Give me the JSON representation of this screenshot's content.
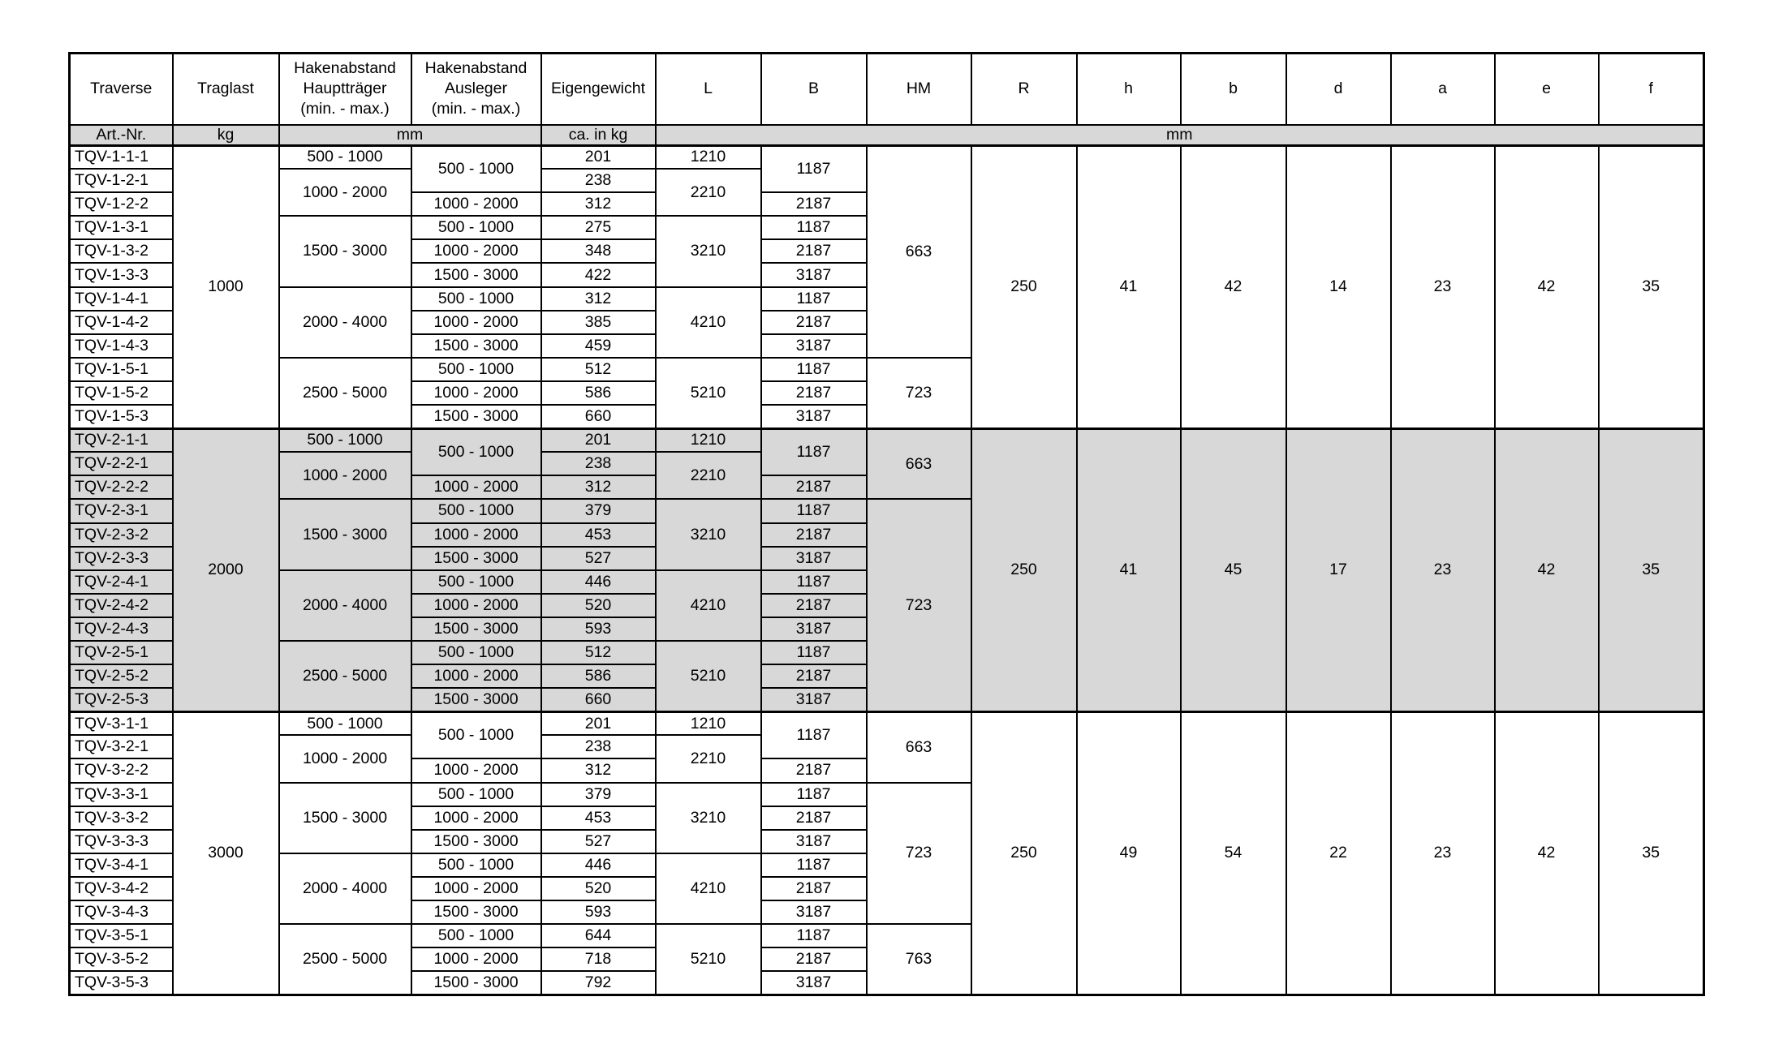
{
  "table": {
    "shade_color": "#d8d8d8",
    "border_color": "#000000",
    "column_keys": [
      "art-nr",
      "traglast",
      "hakenabstand-haupttraeger",
      "hakenabstand-ausleger",
      "eigengewicht",
      "l",
      "b-upper",
      "hm",
      "r",
      "h",
      "b-lower",
      "d",
      "a",
      "e",
      "f"
    ],
    "columns": [
      "Traverse",
      "Traglast",
      "Hakenabstand\nHauptträger\n(min. - max.)",
      "Hakenabstand\nAusleger\n(min. - max.)",
      "Eigengewicht",
      "L",
      "B",
      "HM",
      "R",
      "h",
      "b",
      "d",
      "a",
      "e",
      "f"
    ],
    "units_row": [
      {
        "t": "Art.-Nr.",
        "cs": 1,
        "name": "unit-art-nr"
      },
      {
        "t": "kg",
        "cs": 1,
        "name": "unit-kg"
      },
      {
        "t": "mm",
        "cs": 2,
        "name": "unit-mm-hakenabstand"
      },
      {
        "t": "ca. in kg",
        "cs": 1,
        "name": "unit-ca-in-kg"
      },
      {
        "t": "mm",
        "cs": 10,
        "name": "unit-mm-abmessungen"
      }
    ],
    "rows": [
      {
        "shade": false,
        "block_start": true,
        "cells": [
          {
            "c": 0,
            "t": "TQV-1-1-1"
          },
          {
            "c": 1,
            "t": "1000",
            "rs": 12
          },
          {
            "c": 2,
            "t": "500 - 1000"
          },
          {
            "c": 3,
            "t": "500 - 1000",
            "rs": 2
          },
          {
            "c": 4,
            "t": "201"
          },
          {
            "c": 5,
            "t": "1210"
          },
          {
            "c": 6,
            "t": "1187",
            "rs": 2
          },
          {
            "c": 7,
            "t": "663",
            "rs": 9
          },
          {
            "c": 8,
            "t": "250",
            "rs": 12
          },
          {
            "c": 9,
            "t": "41",
            "rs": 12
          },
          {
            "c": 10,
            "t": "42",
            "rs": 12
          },
          {
            "c": 11,
            "t": "14",
            "rs": 12
          },
          {
            "c": 12,
            "t": "23",
            "rs": 12
          },
          {
            "c": 13,
            "t": "42",
            "rs": 12
          },
          {
            "c": 14,
            "t": "35",
            "rs": 12
          }
        ]
      },
      {
        "shade": false,
        "cells": [
          {
            "c": 0,
            "t": "TQV-1-2-1"
          },
          {
            "c": 2,
            "t": "1000 - 2000",
            "rs": 2
          },
          {
            "c": 4,
            "t": "238"
          },
          {
            "c": 5,
            "t": "2210",
            "rs": 2
          }
        ]
      },
      {
        "shade": false,
        "cells": [
          {
            "c": 0,
            "t": "TQV-1-2-2"
          },
          {
            "c": 3,
            "t": "1000 - 2000"
          },
          {
            "c": 4,
            "t": "312"
          },
          {
            "c": 6,
            "t": "2187"
          }
        ]
      },
      {
        "shade": false,
        "cells": [
          {
            "c": 0,
            "t": "TQV-1-3-1"
          },
          {
            "c": 2,
            "t": "1500 - 3000",
            "rs": 3
          },
          {
            "c": 3,
            "t": "500 - 1000"
          },
          {
            "c": 4,
            "t": "275"
          },
          {
            "c": 5,
            "t": "3210",
            "rs": 3
          },
          {
            "c": 6,
            "t": "1187"
          }
        ]
      },
      {
        "shade": false,
        "cells": [
          {
            "c": 0,
            "t": "TQV-1-3-2"
          },
          {
            "c": 3,
            "t": "1000 - 2000"
          },
          {
            "c": 4,
            "t": "348"
          },
          {
            "c": 6,
            "t": "2187"
          }
        ]
      },
      {
        "shade": false,
        "cells": [
          {
            "c": 0,
            "t": "TQV-1-3-3"
          },
          {
            "c": 3,
            "t": "1500 - 3000"
          },
          {
            "c": 4,
            "t": "422"
          },
          {
            "c": 6,
            "t": "3187"
          }
        ]
      },
      {
        "shade": false,
        "cells": [
          {
            "c": 0,
            "t": "TQV-1-4-1"
          },
          {
            "c": 2,
            "t": "2000 - 4000",
            "rs": 3
          },
          {
            "c": 3,
            "t": "500 - 1000"
          },
          {
            "c": 4,
            "t": "312"
          },
          {
            "c": 5,
            "t": "4210",
            "rs": 3
          },
          {
            "c": 6,
            "t": "1187"
          }
        ]
      },
      {
        "shade": false,
        "cells": [
          {
            "c": 0,
            "t": "TQV-1-4-2"
          },
          {
            "c": 3,
            "t": "1000 - 2000"
          },
          {
            "c": 4,
            "t": "385"
          },
          {
            "c": 6,
            "t": "2187"
          }
        ]
      },
      {
        "shade": false,
        "cells": [
          {
            "c": 0,
            "t": "TQV-1-4-3"
          },
          {
            "c": 3,
            "t": "1500 - 3000"
          },
          {
            "c": 4,
            "t": "459"
          },
          {
            "c": 6,
            "t": "3187"
          }
        ]
      },
      {
        "shade": false,
        "cells": [
          {
            "c": 0,
            "t": "TQV-1-5-1"
          },
          {
            "c": 2,
            "t": "2500 - 5000",
            "rs": 3
          },
          {
            "c": 3,
            "t": "500 - 1000"
          },
          {
            "c": 4,
            "t": "512"
          },
          {
            "c": 5,
            "t": "5210",
            "rs": 3
          },
          {
            "c": 6,
            "t": "1187"
          },
          {
            "c": 7,
            "t": "723",
            "rs": 3
          }
        ]
      },
      {
        "shade": false,
        "cells": [
          {
            "c": 0,
            "t": "TQV-1-5-2"
          },
          {
            "c": 3,
            "t": "1000 - 2000"
          },
          {
            "c": 4,
            "t": "586"
          },
          {
            "c": 6,
            "t": "2187"
          }
        ]
      },
      {
        "shade": false,
        "cells": [
          {
            "c": 0,
            "t": "TQV-1-5-3"
          },
          {
            "c": 3,
            "t": "1500 - 3000"
          },
          {
            "c": 4,
            "t": "660"
          },
          {
            "c": 6,
            "t": "3187"
          }
        ]
      },
      {
        "shade": true,
        "block_start": true,
        "cells": [
          {
            "c": 0,
            "t": "TQV-2-1-1"
          },
          {
            "c": 1,
            "t": "2000",
            "rs": 12
          },
          {
            "c": 2,
            "t": "500 - 1000"
          },
          {
            "c": 3,
            "t": "500 - 1000",
            "rs": 2
          },
          {
            "c": 4,
            "t": "201"
          },
          {
            "c": 5,
            "t": "1210"
          },
          {
            "c": 6,
            "t": "1187",
            "rs": 2
          },
          {
            "c": 7,
            "t": "663",
            "rs": 3
          },
          {
            "c": 8,
            "t": "250",
            "rs": 12
          },
          {
            "c": 9,
            "t": "41",
            "rs": 12
          },
          {
            "c": 10,
            "t": "45",
            "rs": 12
          },
          {
            "c": 11,
            "t": "17",
            "rs": 12
          },
          {
            "c": 12,
            "t": "23",
            "rs": 12
          },
          {
            "c": 13,
            "t": "42",
            "rs": 12
          },
          {
            "c": 14,
            "t": "35",
            "rs": 12
          }
        ]
      },
      {
        "shade": true,
        "cells": [
          {
            "c": 0,
            "t": "TQV-2-2-1"
          },
          {
            "c": 2,
            "t": "1000 - 2000",
            "rs": 2
          },
          {
            "c": 4,
            "t": "238"
          },
          {
            "c": 5,
            "t": "2210",
            "rs": 2
          }
        ]
      },
      {
        "shade": true,
        "cells": [
          {
            "c": 0,
            "t": "TQV-2-2-2"
          },
          {
            "c": 3,
            "t": "1000 - 2000"
          },
          {
            "c": 4,
            "t": "312"
          },
          {
            "c": 6,
            "t": "2187"
          }
        ]
      },
      {
        "shade": true,
        "cells": [
          {
            "c": 0,
            "t": "TQV-2-3-1"
          },
          {
            "c": 2,
            "t": "1500 - 3000",
            "rs": 3
          },
          {
            "c": 3,
            "t": "500 - 1000"
          },
          {
            "c": 4,
            "t": "379"
          },
          {
            "c": 5,
            "t": "3210",
            "rs": 3
          },
          {
            "c": 6,
            "t": "1187"
          },
          {
            "c": 7,
            "t": "723",
            "rs": 9
          }
        ]
      },
      {
        "shade": true,
        "cells": [
          {
            "c": 0,
            "t": "TQV-2-3-2"
          },
          {
            "c": 3,
            "t": "1000 - 2000"
          },
          {
            "c": 4,
            "t": "453"
          },
          {
            "c": 6,
            "t": "2187"
          }
        ]
      },
      {
        "shade": true,
        "cells": [
          {
            "c": 0,
            "t": "TQV-2-3-3"
          },
          {
            "c": 3,
            "t": "1500 - 3000"
          },
          {
            "c": 4,
            "t": "527"
          },
          {
            "c": 6,
            "t": "3187"
          }
        ]
      },
      {
        "shade": true,
        "cells": [
          {
            "c": 0,
            "t": "TQV-2-4-1"
          },
          {
            "c": 2,
            "t": "2000 - 4000",
            "rs": 3
          },
          {
            "c": 3,
            "t": "500 - 1000"
          },
          {
            "c": 4,
            "t": "446"
          },
          {
            "c": 5,
            "t": "4210",
            "rs": 3
          },
          {
            "c": 6,
            "t": "1187"
          }
        ]
      },
      {
        "shade": true,
        "cells": [
          {
            "c": 0,
            "t": "TQV-2-4-2"
          },
          {
            "c": 3,
            "t": "1000 - 2000"
          },
          {
            "c": 4,
            "t": "520"
          },
          {
            "c": 6,
            "t": "2187"
          }
        ]
      },
      {
        "shade": true,
        "cells": [
          {
            "c": 0,
            "t": "TQV-2-4-3"
          },
          {
            "c": 3,
            "t": "1500 - 3000"
          },
          {
            "c": 4,
            "t": "593"
          },
          {
            "c": 6,
            "t": "3187"
          }
        ]
      },
      {
        "shade": true,
        "cells": [
          {
            "c": 0,
            "t": "TQV-2-5-1"
          },
          {
            "c": 2,
            "t": "2500 - 5000",
            "rs": 3
          },
          {
            "c": 3,
            "t": "500 - 1000"
          },
          {
            "c": 4,
            "t": "512"
          },
          {
            "c": 5,
            "t": "5210",
            "rs": 3
          },
          {
            "c": 6,
            "t": "1187"
          }
        ]
      },
      {
        "shade": true,
        "cells": [
          {
            "c": 0,
            "t": "TQV-2-5-2"
          },
          {
            "c": 3,
            "t": "1000 - 2000"
          },
          {
            "c": 4,
            "t": "586"
          },
          {
            "c": 6,
            "t": "2187"
          }
        ]
      },
      {
        "shade": true,
        "cells": [
          {
            "c": 0,
            "t": "TQV-2-5-3"
          },
          {
            "c": 3,
            "t": "1500 - 3000"
          },
          {
            "c": 4,
            "t": "660"
          },
          {
            "c": 6,
            "t": "3187"
          }
        ]
      },
      {
        "shade": false,
        "block_start": true,
        "cells": [
          {
            "c": 0,
            "t": "TQV-3-1-1"
          },
          {
            "c": 1,
            "t": "3000",
            "rs": 12
          },
          {
            "c": 2,
            "t": "500 - 1000"
          },
          {
            "c": 3,
            "t": "500 - 1000",
            "rs": 2
          },
          {
            "c": 4,
            "t": "201"
          },
          {
            "c": 5,
            "t": "1210"
          },
          {
            "c": 6,
            "t": "1187",
            "rs": 2
          },
          {
            "c": 7,
            "t": "663",
            "rs": 3
          },
          {
            "c": 8,
            "t": "250",
            "rs": 12
          },
          {
            "c": 9,
            "t": "49",
            "rs": 12
          },
          {
            "c": 10,
            "t": "54",
            "rs": 12
          },
          {
            "c": 11,
            "t": "22",
            "rs": 12
          },
          {
            "c": 12,
            "t": "23",
            "rs": 12
          },
          {
            "c": 13,
            "t": "42",
            "rs": 12
          },
          {
            "c": 14,
            "t": "35",
            "rs": 12
          }
        ]
      },
      {
        "shade": false,
        "cells": [
          {
            "c": 0,
            "t": "TQV-3-2-1"
          },
          {
            "c": 2,
            "t": "1000 - 2000",
            "rs": 2
          },
          {
            "c": 4,
            "t": "238"
          },
          {
            "c": 5,
            "t": "2210",
            "rs": 2
          }
        ]
      },
      {
        "shade": false,
        "cells": [
          {
            "c": 0,
            "t": "TQV-3-2-2"
          },
          {
            "c": 3,
            "t": "1000 - 2000"
          },
          {
            "c": 4,
            "t": "312"
          },
          {
            "c": 6,
            "t": "2187"
          }
        ]
      },
      {
        "shade": false,
        "cells": [
          {
            "c": 0,
            "t": "TQV-3-3-1"
          },
          {
            "c": 2,
            "t": "1500 - 3000",
            "rs": 3
          },
          {
            "c": 3,
            "t": "500 - 1000"
          },
          {
            "c": 4,
            "t": "379"
          },
          {
            "c": 5,
            "t": "3210",
            "rs": 3
          },
          {
            "c": 6,
            "t": "1187"
          },
          {
            "c": 7,
            "t": "723",
            "rs": 6
          }
        ]
      },
      {
        "shade": false,
        "cells": [
          {
            "c": 0,
            "t": "TQV-3-3-2"
          },
          {
            "c": 3,
            "t": "1000 - 2000"
          },
          {
            "c": 4,
            "t": "453"
          },
          {
            "c": 6,
            "t": "2187"
          }
        ]
      },
      {
        "shade": false,
        "cells": [
          {
            "c": 0,
            "t": "TQV-3-3-3"
          },
          {
            "c": 3,
            "t": "1500 - 3000"
          },
          {
            "c": 4,
            "t": "527"
          },
          {
            "c": 6,
            "t": "3187"
          }
        ]
      },
      {
        "shade": false,
        "cells": [
          {
            "c": 0,
            "t": "TQV-3-4-1"
          },
          {
            "c": 2,
            "t": "2000 - 4000",
            "rs": 3
          },
          {
            "c": 3,
            "t": "500 - 1000"
          },
          {
            "c": 4,
            "t": "446"
          },
          {
            "c": 5,
            "t": "4210",
            "rs": 3
          },
          {
            "c": 6,
            "t": "1187"
          }
        ]
      },
      {
        "shade": false,
        "cells": [
          {
            "c": 0,
            "t": "TQV-3-4-2"
          },
          {
            "c": 3,
            "t": "1000 - 2000"
          },
          {
            "c": 4,
            "t": "520"
          },
          {
            "c": 6,
            "t": "2187"
          }
        ]
      },
      {
        "shade": false,
        "cells": [
          {
            "c": 0,
            "t": "TQV-3-4-3"
          },
          {
            "c": 3,
            "t": "1500 - 3000"
          },
          {
            "c": 4,
            "t": "593"
          },
          {
            "c": 6,
            "t": "3187"
          }
        ]
      },
      {
        "shade": false,
        "cells": [
          {
            "c": 0,
            "t": "TQV-3-5-1"
          },
          {
            "c": 2,
            "t": "2500 - 5000",
            "rs": 3
          },
          {
            "c": 3,
            "t": "500 - 1000"
          },
          {
            "c": 4,
            "t": "644"
          },
          {
            "c": 5,
            "t": "5210",
            "rs": 3
          },
          {
            "c": 6,
            "t": "1187"
          },
          {
            "c": 7,
            "t": "763",
            "rs": 3
          }
        ]
      },
      {
        "shade": false,
        "cells": [
          {
            "c": 0,
            "t": "TQV-3-5-2"
          },
          {
            "c": 3,
            "t": "1000 - 2000"
          },
          {
            "c": 4,
            "t": "718"
          },
          {
            "c": 6,
            "t": "2187"
          }
        ]
      },
      {
        "shade": false,
        "cells": [
          {
            "c": 0,
            "t": "TQV-3-5-3"
          },
          {
            "c": 3,
            "t": "1500 - 3000"
          },
          {
            "c": 4,
            "t": "792"
          },
          {
            "c": 6,
            "t": "3187"
          }
        ]
      }
    ]
  }
}
